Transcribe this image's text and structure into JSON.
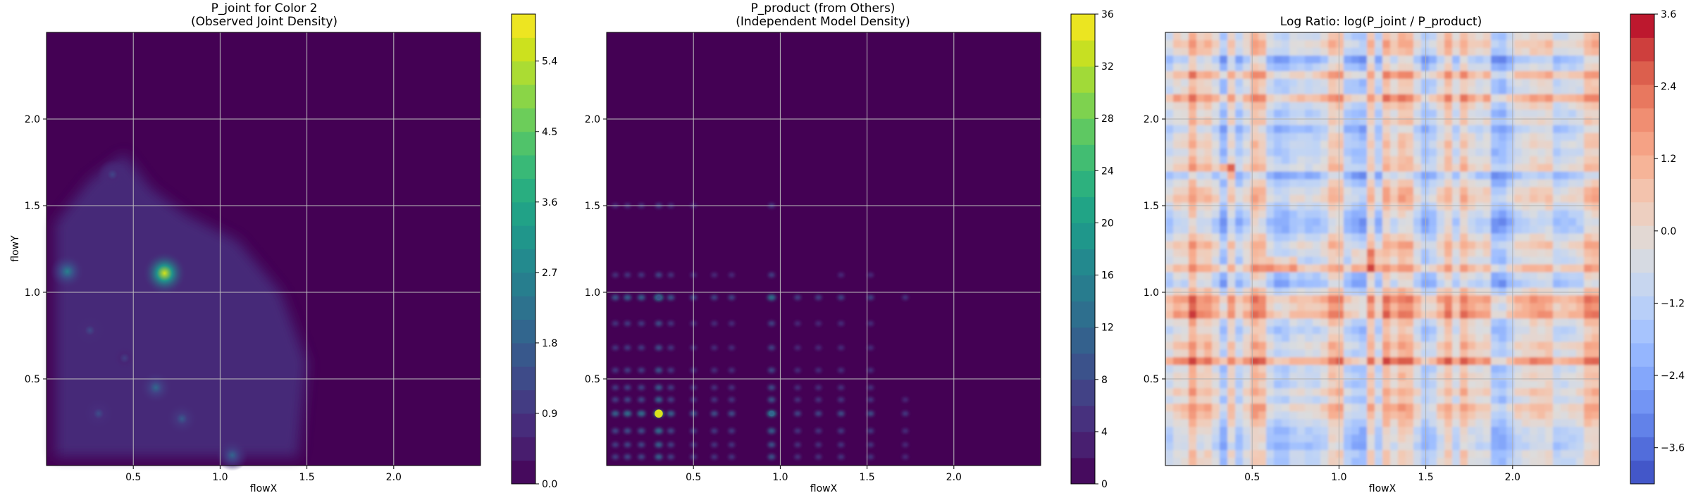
{
  "chart_data": [
    {
      "type": "heatmap",
      "title": "P_joint for Color 2\n(Observed Joint Density)",
      "xlabel": "flowX",
      "ylabel": "flowY",
      "xlim": [
        0.0,
        2.5
      ],
      "ylim": [
        0.0,
        2.5
      ],
      "x_ticks": [
        "0.5",
        "1.0",
        "1.5",
        "2.0"
      ],
      "y_ticks": [
        "0.5",
        "1.0",
        "1.5",
        "2.0"
      ],
      "grid": true,
      "colormap": "viridis",
      "colorbar": {
        "min": 0.0,
        "max": 6.0,
        "ticks": [
          "0.0",
          "0.9",
          "1.8",
          "2.7",
          "3.6",
          "4.5",
          "5.4"
        ],
        "tick_values": [
          0.0,
          0.9,
          1.8,
          2.7,
          3.6,
          4.5,
          5.4
        ]
      },
      "peaks": [
        {
          "x": 0.68,
          "y": 1.11,
          "value": 5.6
        },
        {
          "x": 0.12,
          "y": 1.12,
          "value": 2.6
        },
        {
          "x": 0.63,
          "y": 0.45,
          "value": 2.0
        },
        {
          "x": 0.38,
          "y": 1.68,
          "value": 1.2
        },
        {
          "x": 0.78,
          "y": 0.27,
          "value": 1.7
        },
        {
          "x": 1.07,
          "y": 0.06,
          "value": 1.9
        },
        {
          "x": 0.25,
          "y": 0.78,
          "value": 1.3
        },
        {
          "x": 0.45,
          "y": 0.62,
          "value": 1.1
        },
        {
          "x": 0.3,
          "y": 0.3,
          "value": 1.4
        }
      ]
    },
    {
      "type": "heatmap",
      "title": "P_product (from Others)\n(Independent Model Density)",
      "xlabel": "flowX",
      "xlim": [
        0.0,
        2.5
      ],
      "ylim": [
        0.0,
        2.5
      ],
      "x_ticks": [
        "0.5",
        "1.0",
        "1.5",
        "2.0"
      ],
      "y_ticks": [
        "0.5",
        "1.0",
        "1.5",
        "2.0"
      ],
      "grid": true,
      "colormap": "viridis",
      "colorbar": {
        "min": 0,
        "max": 36,
        "ticks": [
          "0",
          "4",
          "8",
          "12",
          "16",
          "20",
          "24",
          "28",
          "32",
          "36"
        ],
        "tick_values": [
          0,
          4,
          8,
          12,
          16,
          20,
          24,
          28,
          32,
          36
        ]
      },
      "peaks": [
        {
          "x": 0.3,
          "y": 0.3,
          "value": 34
        },
        {
          "x": 0.95,
          "y": 0.3,
          "value": 12
        },
        {
          "x": 0.3,
          "y": 0.97,
          "value": 9
        }
      ]
    },
    {
      "type": "heatmap",
      "title": "Log Ratio: log(P_joint / P_product)",
      "xlabel": "flowX",
      "xlim": [
        0.0,
        2.5
      ],
      "ylim": [
        0.0,
        2.5
      ],
      "x_ticks": [
        "0.5",
        "1.0",
        "1.5",
        "2.0"
      ],
      "y_ticks": [
        "0.5",
        "1.0",
        "1.5",
        "2.0"
      ],
      "grid": true,
      "colormap": "coolwarm",
      "colorbar": {
        "min": -4.2,
        "max": 3.6,
        "ticks": [
          "3.6",
          "2.4",
          "1.2",
          "0.0",
          "−1.2",
          "−2.4",
          "−3.6"
        ],
        "tick_values": [
          3.6,
          2.4,
          1.2,
          0.0,
          -1.2,
          -2.4,
          -3.6
        ]
      }
    }
  ]
}
